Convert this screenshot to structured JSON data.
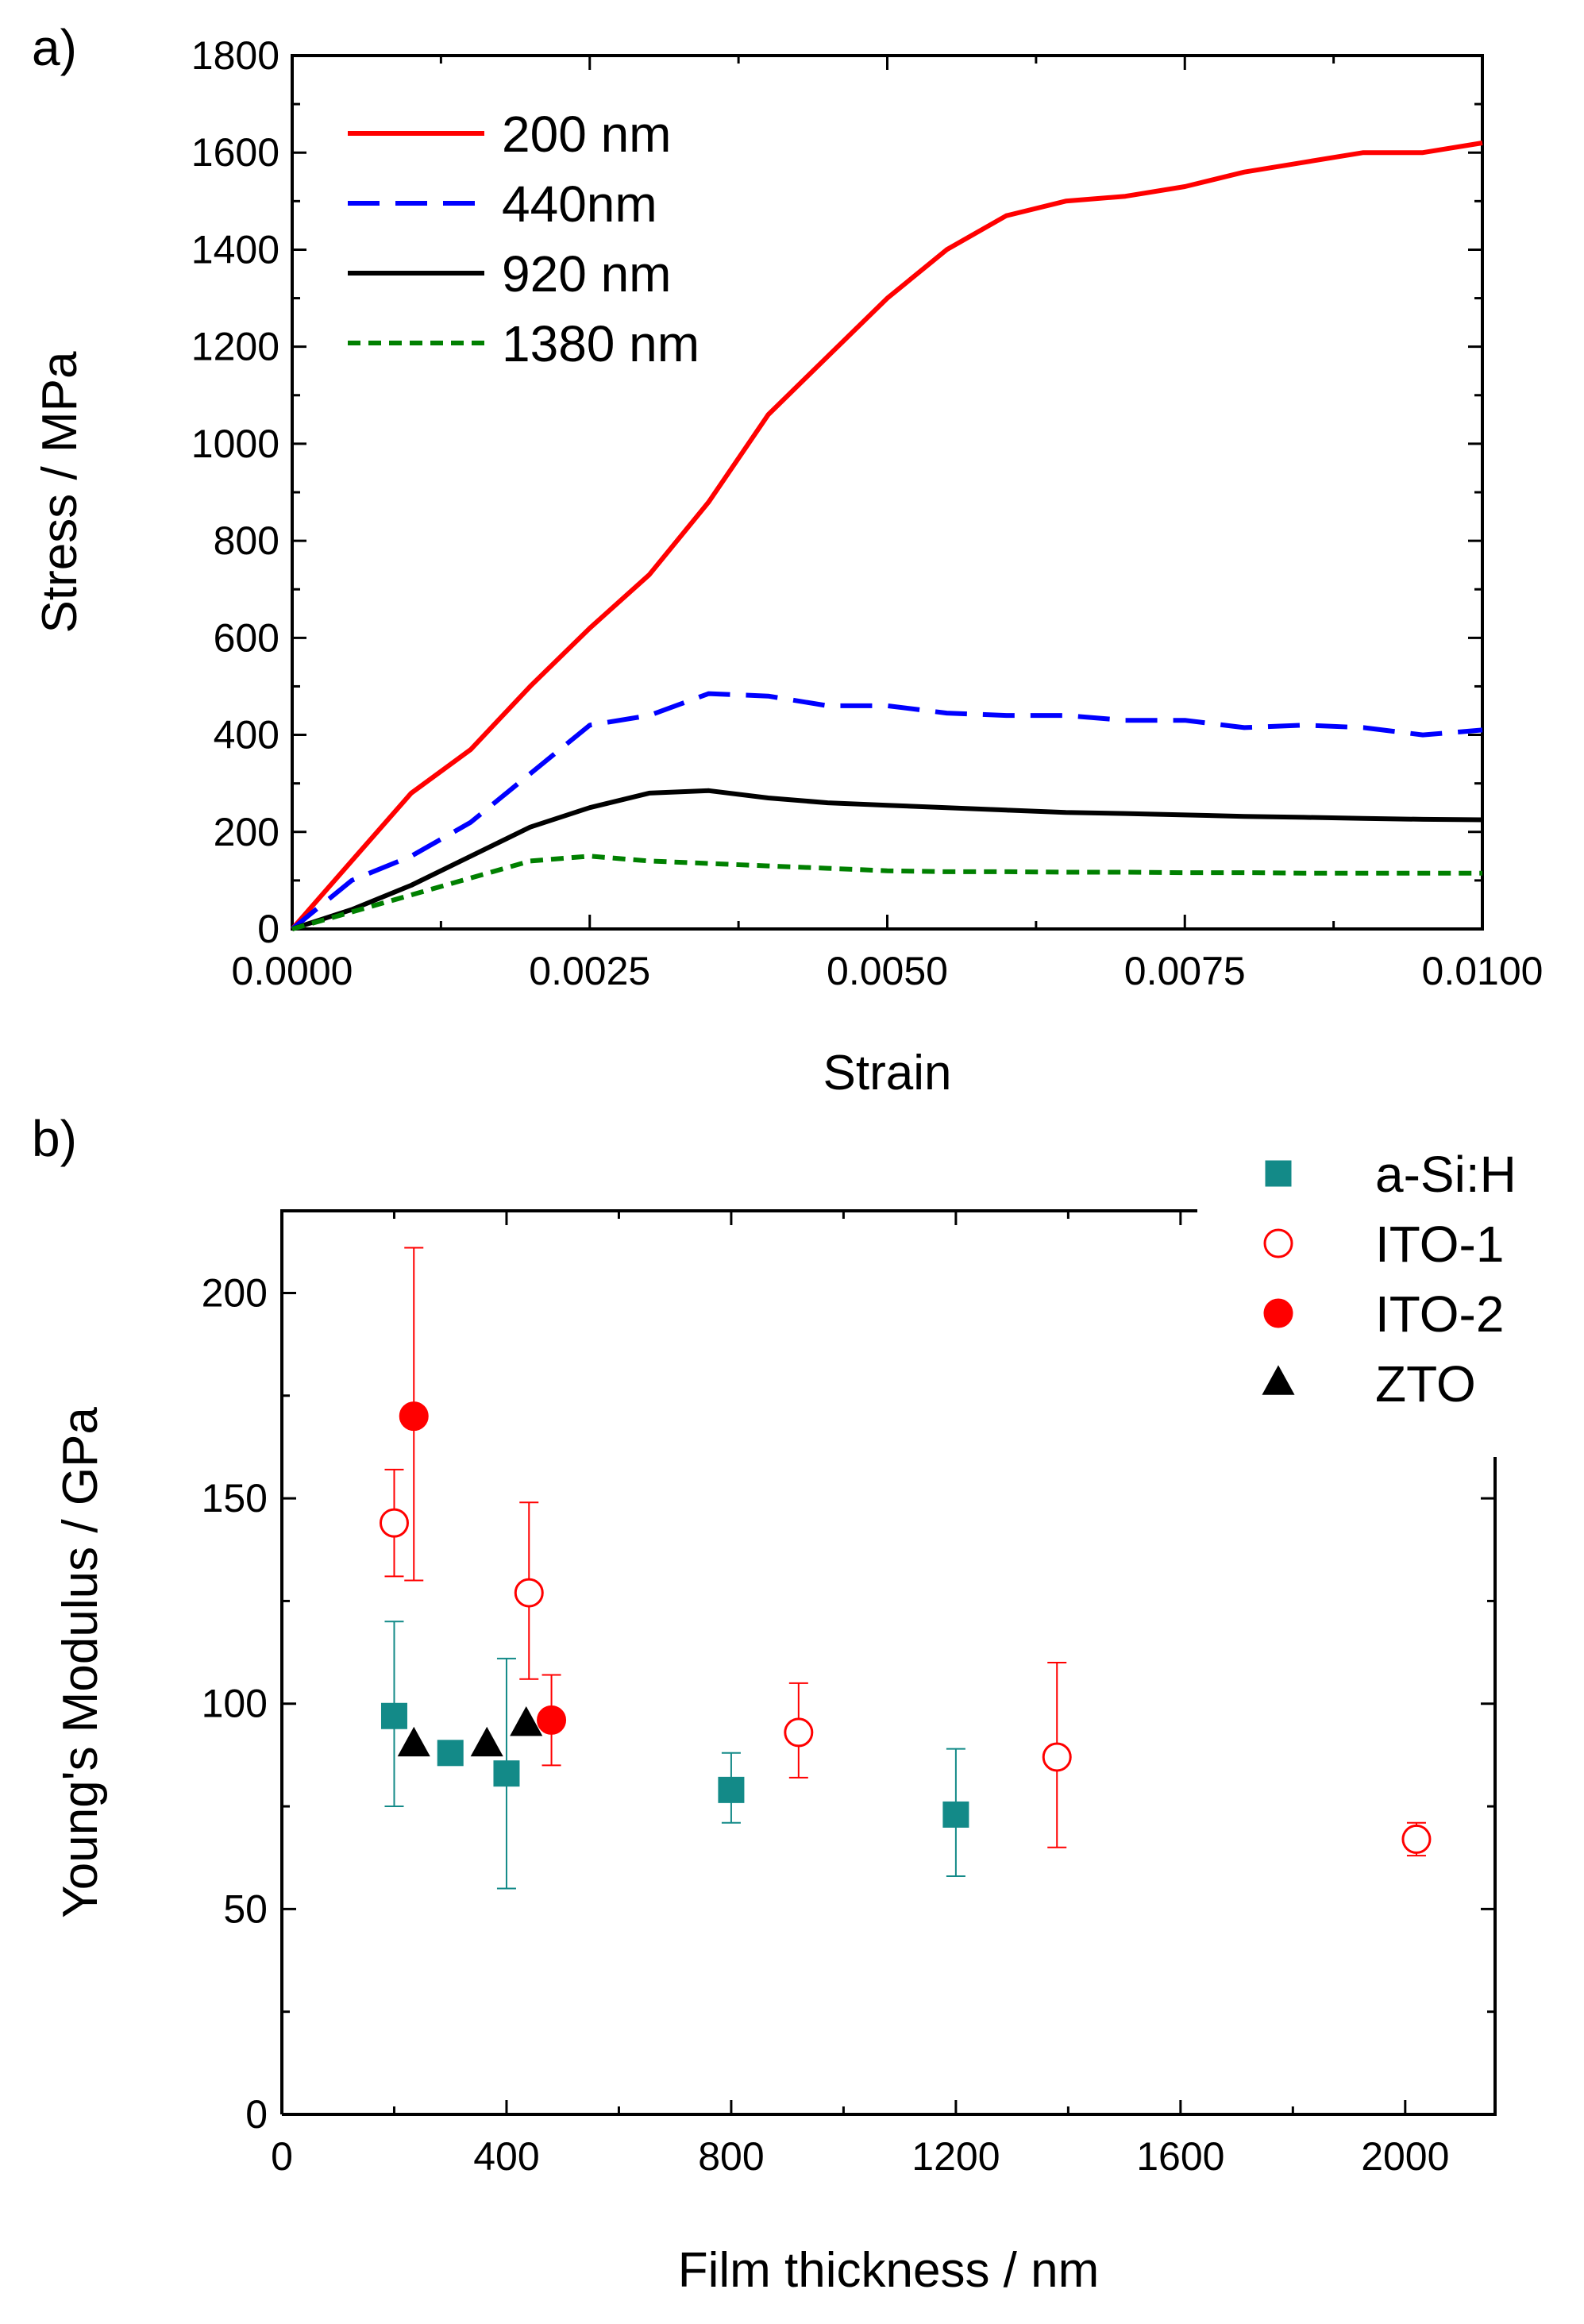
{
  "figure": {
    "panels": [
      "a)",
      "b)"
    ]
  },
  "chart_data": [
    {
      "type": "line",
      "panel": "a)",
      "xlabel": "Strain",
      "ylabel": "Stress / MPa",
      "xlim": [
        0,
        0.01
      ],
      "ylim": [
        0,
        1800
      ],
      "xticks": [
        0,
        0.0025,
        0.005,
        0.0075,
        0.01
      ],
      "xtick_labels": [
        "0.0000",
        "0.0025",
        "0.0050",
        "0.0075",
        "0.0100"
      ],
      "yticks": [
        0,
        200,
        400,
        600,
        800,
        1000,
        1200,
        1400,
        1600,
        1800
      ],
      "ytick_labels": [
        "0",
        "200",
        "400",
        "600",
        "800",
        "1000",
        "1200",
        "1400",
        "1600",
        "1800"
      ],
      "legend_position": "top-left",
      "series": [
        {
          "name": "200 nm",
          "color": "#ff0000",
          "dash": "solid",
          "x": [
            0,
            0.0005,
            0.001,
            0.0015,
            0.002,
            0.0025,
            0.003,
            0.0035,
            0.004,
            0.0045,
            0.005,
            0.0055,
            0.006,
            0.0065,
            0.007,
            0.0075,
            0.008,
            0.0085,
            0.009,
            0.0095,
            0.01
          ],
          "y": [
            0,
            140,
            280,
            370,
            500,
            620,
            730,
            880,
            1060,
            1180,
            1300,
            1400,
            1470,
            1500,
            1510,
            1530,
            1560,
            1580,
            1600,
            1600,
            1620
          ]
        },
        {
          "name": "440nm",
          "color": "#0000ff",
          "dash": "dashed",
          "x": [
            0,
            0.0005,
            0.001,
            0.0015,
            0.002,
            0.0025,
            0.003,
            0.0035,
            0.004,
            0.0045,
            0.005,
            0.0055,
            0.006,
            0.0065,
            0.007,
            0.0075,
            0.008,
            0.0085,
            0.009,
            0.0095,
            0.01
          ],
          "y": [
            0,
            100,
            150,
            220,
            320,
            420,
            440,
            485,
            480,
            460,
            460,
            445,
            440,
            440,
            430,
            430,
            415,
            420,
            415,
            400,
            410
          ]
        },
        {
          "name": "920 nm",
          "color": "#000000",
          "dash": "solid",
          "x": [
            0,
            0.0005,
            0.001,
            0.0015,
            0.002,
            0.0025,
            0.003,
            0.0035,
            0.004,
            0.0045,
            0.005,
            0.0055,
            0.006,
            0.0065,
            0.007,
            0.0075,
            0.008,
            0.0085,
            0.009,
            0.0095,
            0.01
          ],
          "y": [
            0,
            40,
            90,
            150,
            210,
            250,
            280,
            285,
            270,
            260,
            255,
            250,
            245,
            240,
            238,
            235,
            232,
            230,
            228,
            226,
            225
          ]
        },
        {
          "name": "1380 nm",
          "color": "#008000",
          "dash": "dotted",
          "x": [
            0,
            0.0005,
            0.001,
            0.0015,
            0.002,
            0.0025,
            0.003,
            0.0035,
            0.004,
            0.0045,
            0.005,
            0.0055,
            0.006,
            0.0065,
            0.007,
            0.0075,
            0.008,
            0.0085,
            0.009,
            0.0095,
            0.01
          ],
          "y": [
            0,
            35,
            70,
            105,
            140,
            150,
            140,
            135,
            130,
            125,
            120,
            118,
            118,
            117,
            117,
            116,
            116,
            115,
            115,
            115,
            115
          ]
        }
      ]
    },
    {
      "type": "scatter",
      "panel": "b)",
      "xlabel": "Film thickness / nm",
      "ylabel": "Young's Modulus / GPa",
      "xlim": [
        0,
        2160
      ],
      "ylim": [
        0,
        220
      ],
      "xticks": [
        0,
        400,
        800,
        1200,
        1600,
        2000
      ],
      "xtick_labels": [
        "0",
        "400",
        "800",
        "1200",
        "1600",
        "2000"
      ],
      "yticks": [
        0,
        50,
        100,
        150,
        200
      ],
      "ytick_labels": [
        "0",
        "50",
        "100",
        "150",
        "200"
      ],
      "legend_position": "top-right",
      "series": [
        {
          "name": "a-Si:H",
          "color": "#138a88",
          "marker": "square",
          "filled": true,
          "points": [
            {
              "x": 200,
              "y": 97,
              "lo": 75,
              "hi": 120
            },
            {
              "x": 300,
              "y": 88
            },
            {
              "x": 400,
              "y": 83,
              "lo": 55,
              "hi": 111
            },
            {
              "x": 800,
              "y": 79,
              "lo": 71,
              "hi": 88
            },
            {
              "x": 1200,
              "y": 73,
              "lo": 58,
              "hi": 89
            }
          ]
        },
        {
          "name": "ITO-1",
          "color": "#ff0000",
          "marker": "circle",
          "filled": false,
          "points": [
            {
              "x": 200,
              "y": 144,
              "lo": 131,
              "hi": 157
            },
            {
              "x": 440,
              "y": 127,
              "lo": 106,
              "hi": 149
            },
            {
              "x": 920,
              "y": 93,
              "lo": 82,
              "hi": 105
            },
            {
              "x": 1380,
              "y": 87,
              "lo": 65,
              "hi": 110
            },
            {
              "x": 2020,
              "y": 67,
              "lo": 63,
              "hi": 71
            }
          ]
        },
        {
          "name": "ITO-2",
          "color": "#ff0000",
          "marker": "circle",
          "filled": true,
          "points": [
            {
              "x": 235,
              "y": 170,
              "lo": 130,
              "hi": 211
            },
            {
              "x": 480,
              "y": 96,
              "lo": 85,
              "hi": 107
            }
          ]
        },
        {
          "name": "ZTO",
          "color": "#000000",
          "marker": "triangle",
          "filled": true,
          "points": [
            {
              "x": 235,
              "y": 90
            },
            {
              "x": 365,
              "y": 90
            },
            {
              "x": 435,
              "y": 95
            }
          ]
        }
      ]
    }
  ]
}
